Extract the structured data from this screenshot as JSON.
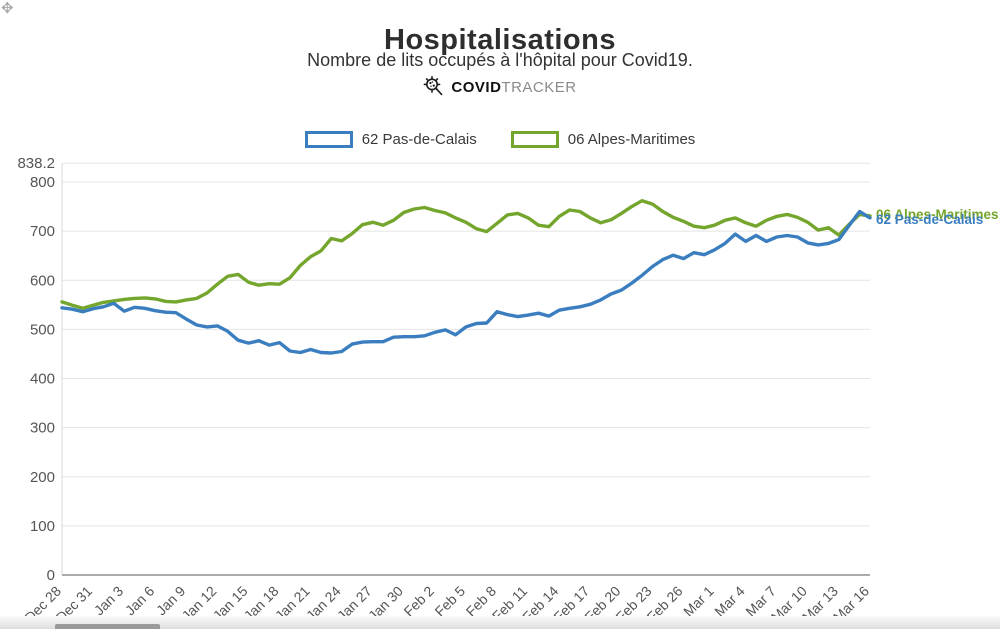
{
  "header": {
    "title": "Hospitalisations",
    "subtitle": "Nombre de lits occupés à l'hôpital pour Covid19.",
    "brand_bold": "COVID",
    "brand_light": "TRACKER"
  },
  "legend": [
    {
      "label": "62 Pas-de-Calais",
      "color": "#3a7ebf"
    },
    {
      "label": "06 Alpes-Maritimes",
      "color": "#74a52c"
    }
  ],
  "chart_data": {
    "type": "line",
    "title": "Hospitalisations",
    "xlabel": "",
    "ylabel": "",
    "ylim": [
      0,
      838.2
    ],
    "grid": true,
    "yticks": [
      "0",
      "100",
      "200",
      "300",
      "400",
      "500",
      "600",
      "700",
      "800",
      "838.2"
    ],
    "x_tick_labels": [
      "Dec 28",
      "Dec 31",
      "Jan 3",
      "Jan 6",
      "Jan 9",
      "Jan 12",
      "Jan 15",
      "Jan 18",
      "Jan 21",
      "Jan 24",
      "Jan 27",
      "Jan 30",
      "Feb 2",
      "Feb 5",
      "Feb 8",
      "Feb 11",
      "Feb 14",
      "Feb 17",
      "Feb 20",
      "Feb 23",
      "Feb 26",
      "Mar 1",
      "Mar 4",
      "Mar 7",
      "Mar 10",
      "Mar 13",
      "Mar 16"
    ],
    "x_note": "daily values, one point per day from Dec 28 to Mar 16 (79 points), ticks every 3 days",
    "series": [
      {
        "name": "62 Pas-de-Calais",
        "color": "#3a7ebf",
        "values": [
          544,
          541,
          536,
          542,
          546,
          553,
          537,
          545,
          543,
          538,
          535,
          534,
          521,
          509,
          505,
          507,
          496,
          478,
          472,
          477,
          468,
          473,
          456,
          453,
          459,
          453,
          452,
          455,
          470,
          474,
          475,
          475,
          484,
          485,
          485,
          487,
          494,
          499,
          489,
          505,
          512,
          513,
          536,
          530,
          526,
          529,
          533,
          527,
          539,
          543,
          546,
          551,
          560,
          572,
          580,
          594,
          610,
          628,
          642,
          651,
          644,
          656,
          652,
          662,
          675,
          694,
          679,
          691,
          679,
          688,
          691,
          688,
          676,
          672,
          675,
          683,
          712,
          740,
          727
        ]
      },
      {
        "name": "06 Alpes-Maritimes",
        "color": "#74a52c",
        "values": [
          556,
          549,
          543,
          549,
          555,
          558,
          561,
          563,
          564,
          562,
          557,
          556,
          560,
          563,
          574,
          592,
          608,
          612,
          596,
          590,
          593,
          592,
          605,
          630,
          648,
          660,
          685,
          680,
          695,
          713,
          718,
          712,
          722,
          738,
          745,
          748,
          742,
          737,
          727,
          718,
          705,
          699,
          716,
          733,
          736,
          727,
          712,
          709,
          730,
          743,
          740,
          727,
          717,
          723,
          736,
          750,
          762,
          755,
          740,
          728,
          720,
          710,
          707,
          712,
          722,
          727,
          717,
          710,
          722,
          730,
          734,
          728,
          718,
          702,
          707,
          692,
          714,
          734,
          731
        ]
      }
    ],
    "end_labels": [
      {
        "text": "06 Alpes-Maritimes",
        "color": "#74a52c"
      },
      {
        "text": "62 Pas-de-Calais",
        "color": "#3a7ebf"
      }
    ],
    "legend_position": "top-center"
  }
}
